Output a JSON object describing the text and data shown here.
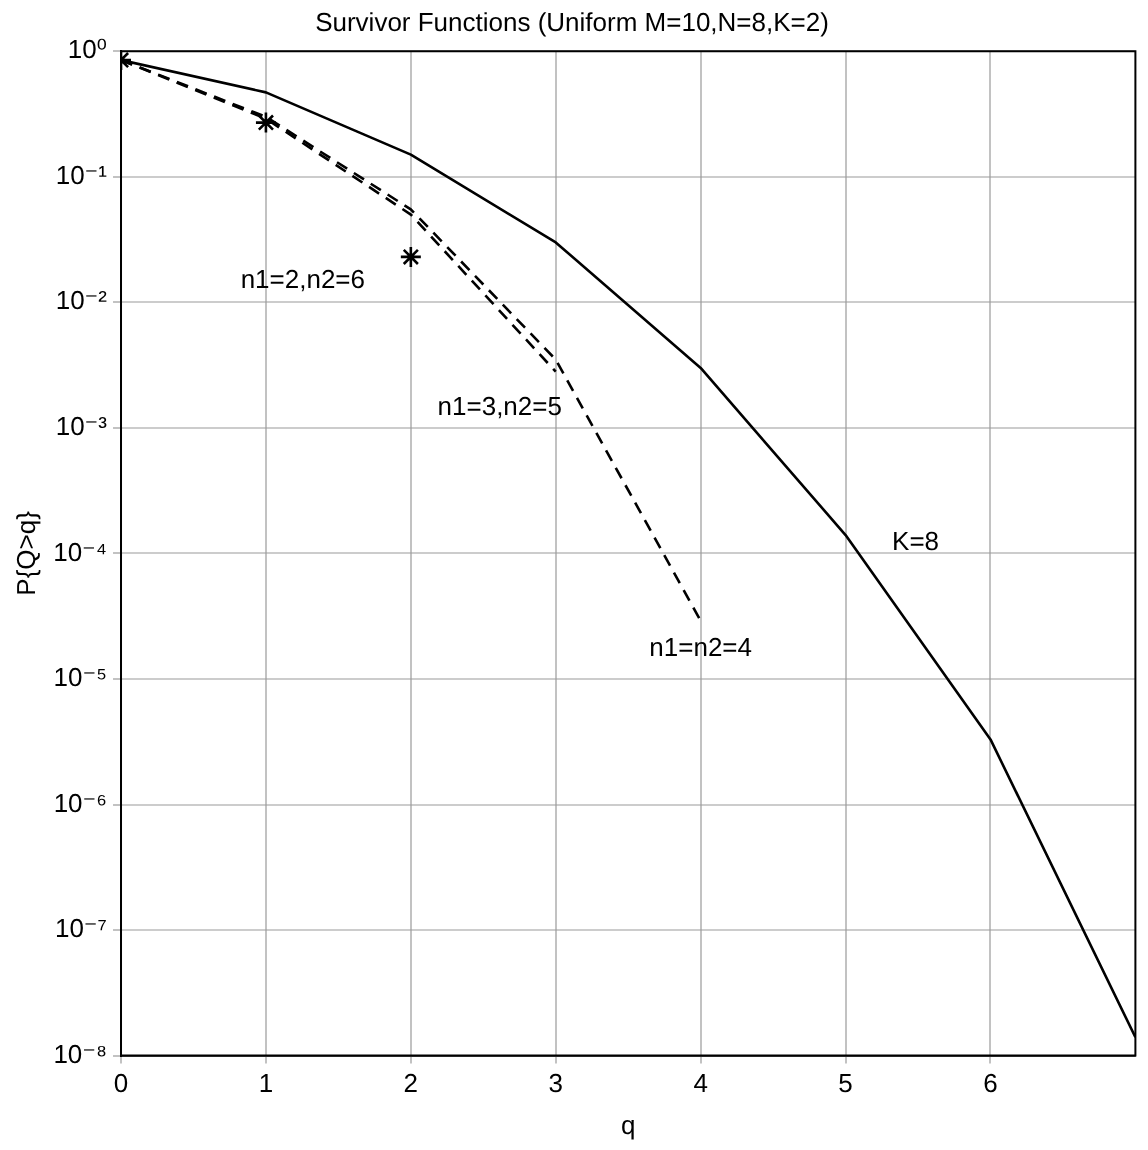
{
  "chart_data": {
    "type": "line",
    "title": "Survivor Functions (Uniform M=10,N=8,K=2)",
    "xlabel": "q",
    "ylabel": "P{Q>q}",
    "log": "y",
    "grid": true,
    "legend": false,
    "xlim": [
      0,
      7
    ],
    "xticks": [
      0,
      1,
      2,
      3,
      4,
      5,
      6
    ],
    "ylim": [
      1e-08,
      1
    ],
    "yticks": [
      {
        "value": 1,
        "label": "10⁰"
      },
      {
        "value": 0.1,
        "label": "10⁻¹"
      },
      {
        "value": 0.01,
        "label": "10⁻²"
      },
      {
        "value": 0.001,
        "label": "10⁻³"
      },
      {
        "value": 0.0001,
        "label": "10⁻⁴"
      },
      {
        "value": 1e-05,
        "label": "10⁻⁵"
      },
      {
        "value": 1e-06,
        "label": "10⁻⁶"
      },
      {
        "value": 1e-07,
        "label": "10⁻⁷"
      },
      {
        "value": 1e-08,
        "label": "10⁻⁸"
      }
    ],
    "series": [
      {
        "name": "K=8",
        "color": "#000000",
        "line_style": "solid",
        "marker": "none",
        "x": [
          0,
          1,
          2,
          3,
          4,
          5,
          6,
          7
        ],
        "values": [
          0.85,
          0.47,
          0.15,
          0.03,
          0.003,
          0.00014,
          3.3e-06,
          1.4e-08
        ]
      },
      {
        "name": "n1=3,n2=5",
        "color": "#000000",
        "line_style": "dashed",
        "marker": "none",
        "x": [
          0,
          1,
          2,
          3
        ],
        "values": [
          0.85,
          0.29,
          0.05,
          0.0028
        ]
      },
      {
        "name": "n1=n2=4",
        "color": "#000000",
        "line_style": "dashed",
        "marker": "none",
        "x": [
          0,
          1,
          2,
          3,
          4
        ],
        "values": [
          0.85,
          0.3,
          0.055,
          0.0035,
          2.9e-05
        ]
      },
      {
        "name": "n1=2,n2=6",
        "type": "scatter",
        "color": "#000000",
        "marker": "cross",
        "x": [
          0,
          1,
          2
        ],
        "values": [
          0.85,
          0.27,
          0.023
        ]
      }
    ]
  }
}
